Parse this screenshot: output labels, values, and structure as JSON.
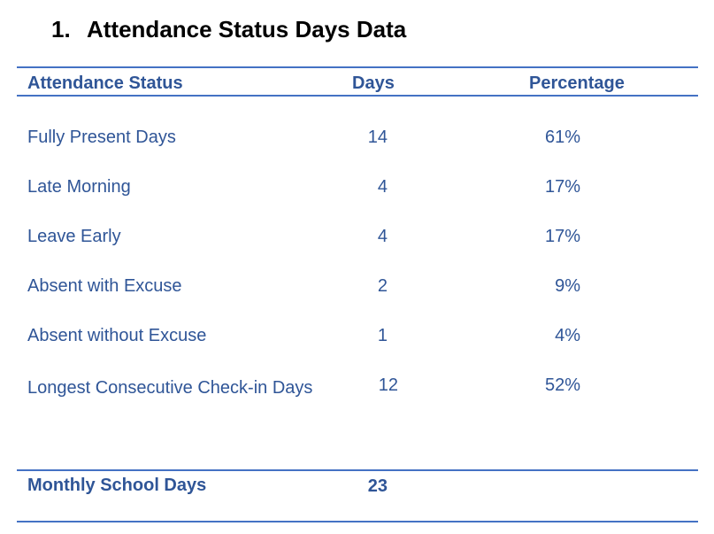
{
  "heading": {
    "number": "1.",
    "title": "Attendance Status Days Data"
  },
  "table": {
    "headers": {
      "status": "Attendance Status",
      "days": "Days",
      "percentage": "Percentage"
    },
    "rows": [
      {
        "status": "Fully Present Days",
        "days": "14",
        "percentage": "61%"
      },
      {
        "status": "Late Morning",
        "days": "4",
        "percentage": "17%"
      },
      {
        "status": "Leave Early",
        "days": "4",
        "percentage": "17%"
      },
      {
        "status": "Absent with Excuse",
        "days": "2",
        "percentage": "9%"
      },
      {
        "status": "Absent without Excuse",
        "days": "1",
        "percentage": "4%"
      },
      {
        "status": "Longest Consecutive Check-in Days",
        "days": "12",
        "percentage": "52%"
      }
    ],
    "footer": {
      "label": "Monthly School Days",
      "days": "23"
    }
  },
  "colors": {
    "text": "#2f5597",
    "rule": "#4472c4",
    "title": "#000000"
  }
}
